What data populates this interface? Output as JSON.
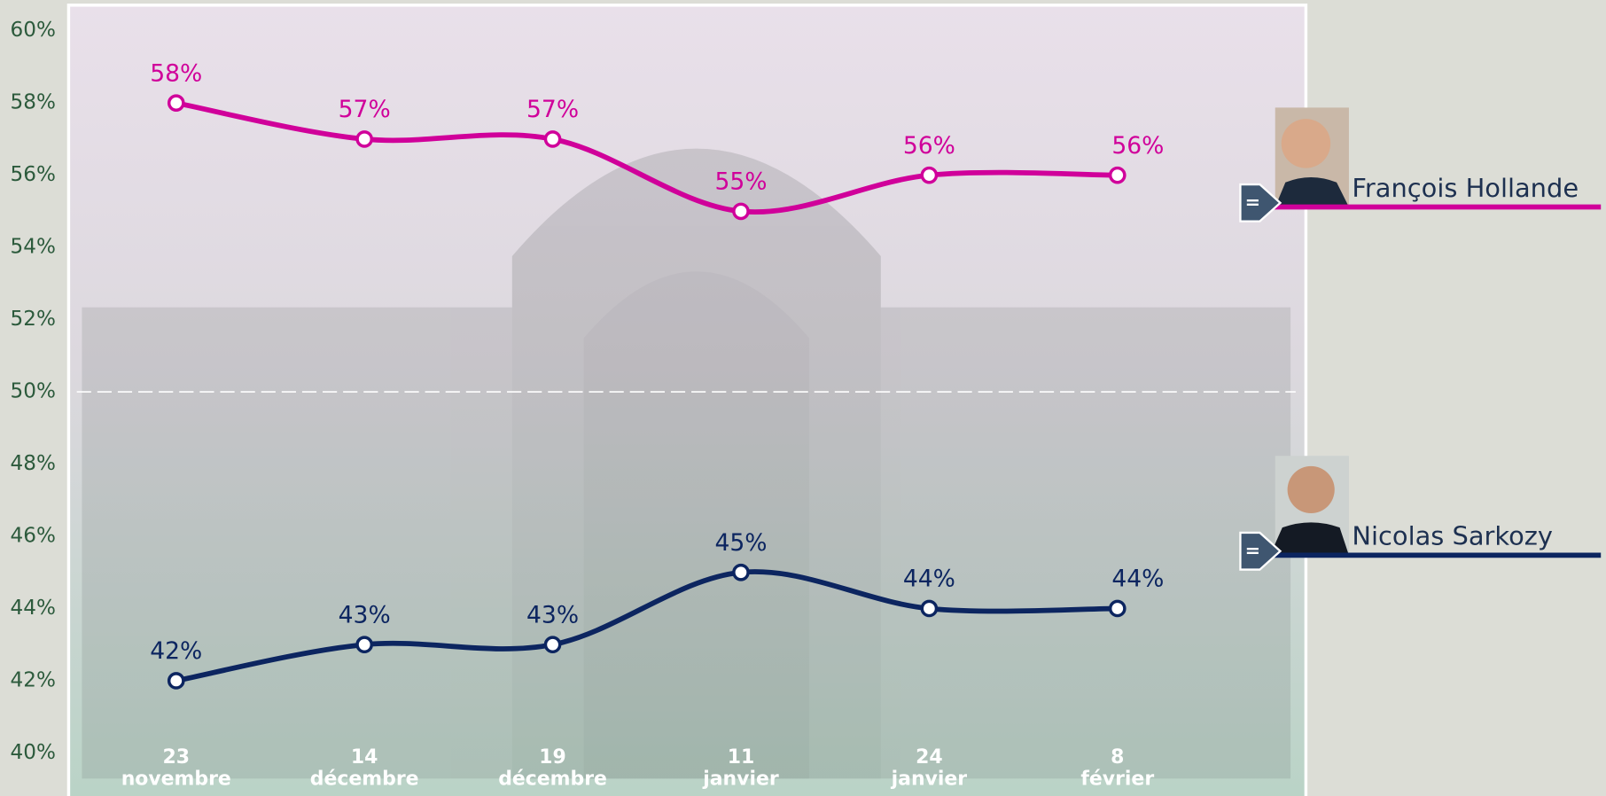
{
  "chart_data": {
    "type": "line",
    "categories": [
      "23 novembre",
      "14 décembre",
      "19 décembre",
      "11 janvier",
      "24 janvier",
      "8 février"
    ],
    "series": [
      {
        "name": "François Hollande",
        "color": "#d0009a",
        "values": [
          58,
          57,
          57,
          55,
          56,
          56
        ],
        "value_labels": [
          "58%",
          "57%",
          "57%",
          "55%",
          "56%",
          "56%"
        ]
      },
      {
        "name": "Nicolas Sarkozy",
        "color": "#0c2560",
        "values": [
          42,
          43,
          43,
          45,
          44,
          44
        ],
        "value_labels": [
          "42%",
          "43%",
          "43%",
          "45%",
          "44%",
          "44%"
        ]
      }
    ],
    "ylim": [
      40,
      60
    ],
    "yticks": [
      {
        "value": 40,
        "label": "40%"
      },
      {
        "value": 42,
        "label": "42%"
      },
      {
        "value": 44,
        "label": "44%"
      },
      {
        "value": 46,
        "label": "46%"
      },
      {
        "value": 48,
        "label": "48%"
      },
      {
        "value": 50,
        "label": "50%"
      },
      {
        "value": 52,
        "label": "52%"
      },
      {
        "value": 54,
        "label": "54%"
      },
      {
        "value": 56,
        "label": "56%"
      },
      {
        "value": 58,
        "label": "58%"
      },
      {
        "value": 60,
        "label": "60%"
      }
    ],
    "reference_line": 50
  }
}
